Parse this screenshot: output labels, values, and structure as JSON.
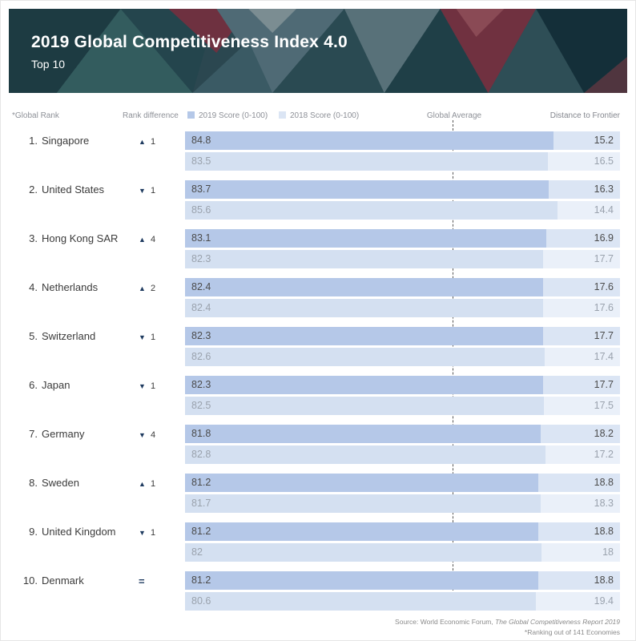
{
  "header": {
    "title": "2019 Global Competitiveness Index 4.0",
    "subtitle": "Top 10"
  },
  "legend": {
    "global_rank": "*Global Rank",
    "rank_difference": "Rank difference",
    "score_2019": "2019 Score (0-100)",
    "score_2018": "2018 Score (0-100)",
    "global_average": "Global Average",
    "distance_to_frontier": "Distance to Frontier"
  },
  "colors": {
    "bar_2019_fill": "#b5c8e8",
    "bar_2019_track": "#dbe5f4",
    "bar_2018_fill": "#d4e0f1",
    "bar_2018_track": "#eaf0f9",
    "rank_change_icon": "#1e3a5f",
    "global_average_line": "#555555"
  },
  "chart_data": {
    "type": "bar",
    "title": "2019 Global Competitiveness Index 4.0 — Top 10",
    "xlabel": "Score (0-100)",
    "xlim": [
      0,
      100
    ],
    "global_average": 61.5,
    "series": [
      "2019 Score (0-100)",
      "2018 Score (0-100)"
    ],
    "rows": [
      {
        "rank_label": "1.",
        "country": "Singapore",
        "change": "up",
        "change_value": "1",
        "score_2019": 84.8,
        "score_2018": 83.5,
        "score_2019_label": "84.8",
        "score_2018_label": "83.5",
        "dtf_2019_label": "15.2",
        "dtf_2018_label": "16.5"
      },
      {
        "rank_label": "2.",
        "country": "United States",
        "change": "down",
        "change_value": "1",
        "score_2019": 83.7,
        "score_2018": 85.6,
        "score_2019_label": "83.7",
        "score_2018_label": "85.6",
        "dtf_2019_label": "16.3",
        "dtf_2018_label": "14.4"
      },
      {
        "rank_label": "3.",
        "country": "Hong Kong SAR",
        "change": "up",
        "change_value": "4",
        "score_2019": 83.1,
        "score_2018": 82.3,
        "score_2019_label": "83.1",
        "score_2018_label": "82.3",
        "dtf_2019_label": "16.9",
        "dtf_2018_label": "17.7"
      },
      {
        "rank_label": "4.",
        "country": "Netherlands",
        "change": "up",
        "change_value": "2",
        "score_2019": 82.4,
        "score_2018": 82.4,
        "score_2019_label": "82.4",
        "score_2018_label": "82.4",
        "dtf_2019_label": "17.6",
        "dtf_2018_label": "17.6"
      },
      {
        "rank_label": "5.",
        "country": "Switzerland",
        "change": "down",
        "change_value": "1",
        "score_2019": 82.3,
        "score_2018": 82.6,
        "score_2019_label": "82.3",
        "score_2018_label": "82.6",
        "dtf_2019_label": "17.7",
        "dtf_2018_label": "17.4"
      },
      {
        "rank_label": "6.",
        "country": "Japan",
        "change": "down",
        "change_value": "1",
        "score_2019": 82.3,
        "score_2018": 82.5,
        "score_2019_label": "82.3",
        "score_2018_label": "82.5",
        "dtf_2019_label": "17.7",
        "dtf_2018_label": "17.5"
      },
      {
        "rank_label": "7.",
        "country": "Germany",
        "change": "down",
        "change_value": "4",
        "score_2019": 81.8,
        "score_2018": 82.8,
        "score_2019_label": "81.8",
        "score_2018_label": "82.8",
        "dtf_2019_label": "18.2",
        "dtf_2018_label": "17.2"
      },
      {
        "rank_label": "8.",
        "country": "Sweden",
        "change": "up",
        "change_value": "1",
        "score_2019": 81.2,
        "score_2018": 81.7,
        "score_2019_label": "81.2",
        "score_2018_label": "81.7",
        "dtf_2019_label": "18.8",
        "dtf_2018_label": "18.3"
      },
      {
        "rank_label": "9.",
        "country": "United Kingdom",
        "change": "down",
        "change_value": "1",
        "score_2019": 81.2,
        "score_2018": 82,
        "score_2019_label": "81.2",
        "score_2018_label": "82",
        "dtf_2019_label": "18.8",
        "dtf_2018_label": "18"
      },
      {
        "rank_label": "10.",
        "country": "Denmark",
        "change": "equal",
        "change_value": "",
        "score_2019": 81.2,
        "score_2018": 80.6,
        "score_2019_label": "81.2",
        "score_2018_label": "80.6",
        "dtf_2019_label": "18.8",
        "dtf_2018_label": "19.4"
      }
    ]
  },
  "footer": {
    "source_prefix": "Source:  World Economic Forum, ",
    "source_italic": "The Global Competitiveness Report 2019",
    "note": "*Ranking out of 141 Economies"
  }
}
